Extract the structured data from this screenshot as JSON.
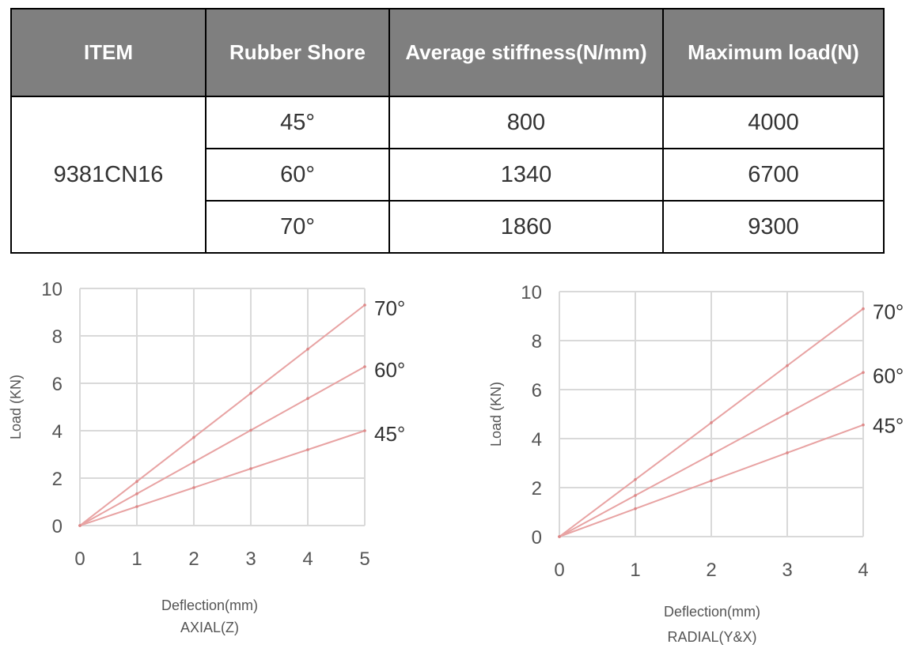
{
  "table": {
    "headers": [
      "ITEM",
      "Rubber Shore",
      "Average stiffness(N/mm)",
      "Maximum load(N)"
    ],
    "item": "9381CN16",
    "rows": [
      {
        "shore": "45°",
        "stiffness": "800",
        "max_load": "4000"
      },
      {
        "shore": "60°",
        "stiffness": "1340",
        "max_load": "6700"
      },
      {
        "shore": "70°",
        "stiffness": "1860",
        "max_load": "9300"
      }
    ]
  },
  "chart_data": [
    {
      "type": "line",
      "title": "AXIAL(Z)",
      "xlabel": "Deflection(mm)",
      "ylabel": "Load (KN)",
      "xlim": [
        0,
        5
      ],
      "ylim": [
        0,
        10
      ],
      "xticks": [
        0,
        1,
        2,
        3,
        4,
        5
      ],
      "yticks": [
        0,
        2,
        4,
        6,
        8,
        10
      ],
      "grid": true,
      "color": "#e8a3a3",
      "series": [
        {
          "name": "70°",
          "x": [
            0,
            1,
            2,
            3,
            4,
            5
          ],
          "y": [
            0,
            1.86,
            3.72,
            5.58,
            7.44,
            9.3
          ]
        },
        {
          "name": "60°",
          "x": [
            0,
            1,
            2,
            3,
            4,
            5
          ],
          "y": [
            0,
            1.34,
            2.68,
            4.02,
            5.36,
            6.7
          ]
        },
        {
          "name": "45°",
          "x": [
            0,
            1,
            2,
            3,
            4,
            5
          ],
          "y": [
            0,
            0.8,
            1.6,
            2.4,
            3.2,
            4.0
          ]
        }
      ]
    },
    {
      "type": "line",
      "title": "RADIAL(Y&X)",
      "xlabel": "Deflection(mm)",
      "ylabel": "Load (KN)",
      "xlim": [
        0,
        4
      ],
      "ylim": [
        0,
        10
      ],
      "xticks": [
        0,
        1,
        2,
        3,
        4
      ],
      "yticks": [
        0,
        2,
        4,
        6,
        8,
        10
      ],
      "grid": true,
      "color": "#e8a3a3",
      "series": [
        {
          "name": "70°",
          "x": [
            0,
            1,
            2,
            3,
            4
          ],
          "y": [
            0,
            2.33,
            4.65,
            6.98,
            9.3
          ]
        },
        {
          "name": "60°",
          "x": [
            0,
            1,
            2,
            3,
            4
          ],
          "y": [
            0,
            1.68,
            3.35,
            5.03,
            6.7
          ]
        },
        {
          "name": "45°",
          "x": [
            0,
            1,
            2,
            3,
            4
          ],
          "y": [
            0,
            1.14,
            2.28,
            3.42,
            4.56
          ]
        }
      ]
    }
  ]
}
